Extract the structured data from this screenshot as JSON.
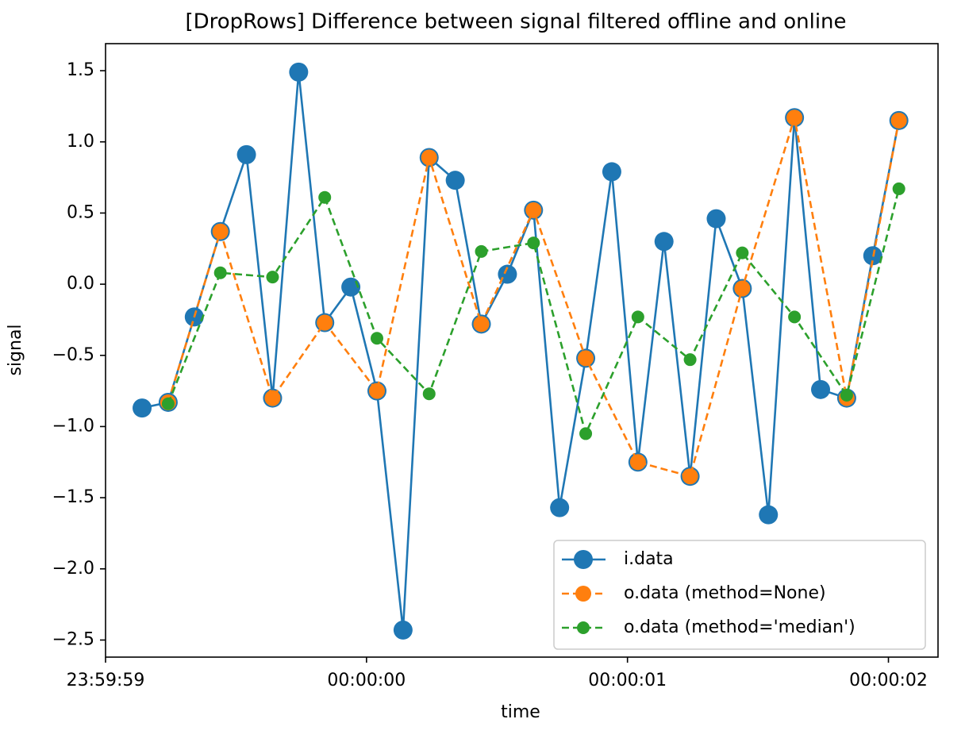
{
  "chart_data": {
    "type": "line",
    "title": "[DropRows] Difference between signal filtered offline and online",
    "xlabel": "time",
    "ylabel": "signal",
    "xlim": [
      0,
      3.19
    ],
    "xticks": [
      {
        "value": 0,
        "label": "23:59:59"
      },
      {
        "value": 1,
        "label": "00:00:00"
      },
      {
        "value": 2,
        "label": "00:00:01"
      },
      {
        "value": 3,
        "label": "00:00:02"
      }
    ],
    "ylim": [
      -2.62,
      1.69
    ],
    "yticks": [
      {
        "value": -2.5,
        "label": "−2.5"
      },
      {
        "value": -2,
        "label": "−2.0"
      },
      {
        "value": -1.5,
        "label": "−1.5"
      },
      {
        "value": -1,
        "label": "−1.0"
      },
      {
        "value": -0.5,
        "label": "−0.5"
      },
      {
        "value": 0,
        "label": "0.0"
      },
      0.5,
      {
        "value": 1,
        "label": "1.0"
      },
      1.5
    ],
    "legend": "lower right",
    "series": [
      {
        "name": "i.data",
        "color": "#1f77b4",
        "linestyle": "solid",
        "markersize": 12,
        "x": [
          0.14,
          0.24,
          0.34,
          0.44,
          0.54,
          0.64,
          0.74,
          0.84,
          0.94,
          1.04,
          1.14,
          1.24,
          1.34,
          1.44,
          1.54,
          1.64,
          1.74,
          1.84,
          1.94,
          2.04,
          2.14,
          2.24,
          2.34,
          2.44,
          2.54,
          2.64,
          2.74,
          2.84,
          2.94,
          3.04
        ],
        "values": [
          -0.87,
          -0.83,
          -0.23,
          0.37,
          0.91,
          -0.8,
          1.49,
          -0.27,
          -0.02,
          -0.75,
          -2.43,
          0.89,
          0.73,
          -0.28,
          0.07,
          0.52,
          -1.57,
          -0.52,
          0.79,
          -1.25,
          0.3,
          -1.35,
          0.46,
          -0.03,
          -1.62,
          1.17,
          -0.74,
          -0.8,
          0.2,
          1.15
        ]
      },
      {
        "name": "o.data (method=None)",
        "color": "#ff7f0e",
        "linestyle": "dashed",
        "markersize": 10,
        "x": [
          0.24,
          0.44,
          0.64,
          0.84,
          1.04,
          1.24,
          1.44,
          1.64,
          1.84,
          2.04,
          2.24,
          2.44,
          2.64,
          2.84,
          3.04
        ],
        "values": [
          -0.83,
          0.37,
          -0.8,
          -0.27,
          -0.75,
          0.89,
          -0.28,
          0.52,
          -0.52,
          -1.25,
          -1.35,
          -0.03,
          1.17,
          -0.8,
          1.15
        ]
      },
      {
        "name": "o.data (method='median')",
        "color": "#2ca02c",
        "linestyle": "dashed",
        "markersize": 8,
        "x": [
          0.24,
          0.44,
          0.64,
          0.84,
          1.04,
          1.24,
          1.44,
          1.64,
          1.84,
          2.04,
          2.24,
          2.44,
          2.64,
          2.84,
          3.04
        ],
        "values": [
          -0.84,
          0.08,
          0.05,
          0.61,
          -0.38,
          -0.77,
          0.23,
          0.29,
          -1.05,
          -0.23,
          -0.53,
          0.22,
          -0.23,
          -0.78,
          0.67
        ]
      }
    ]
  }
}
